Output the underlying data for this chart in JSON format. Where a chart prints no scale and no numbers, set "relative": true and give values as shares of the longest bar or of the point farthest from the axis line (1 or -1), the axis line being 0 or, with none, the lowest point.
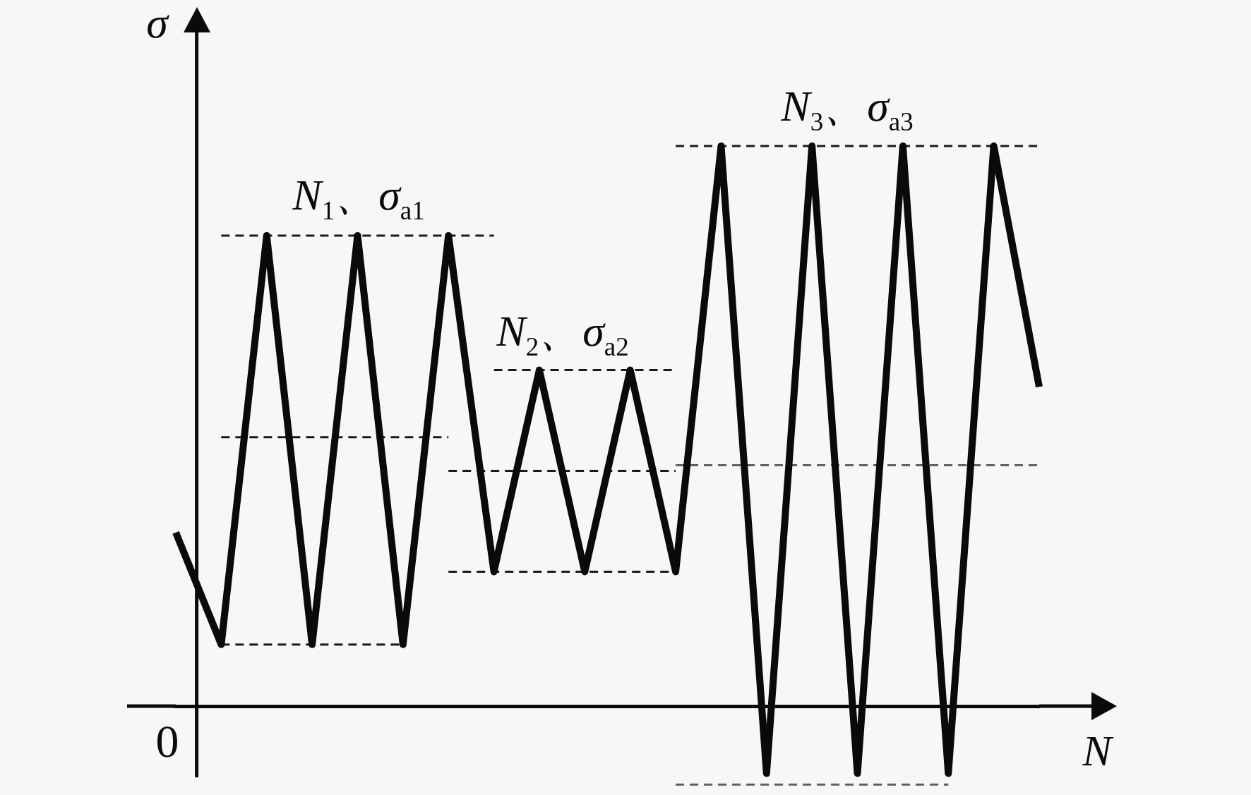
{
  "chart_data": {
    "type": "line",
    "relative": true,
    "xlabel": "N",
    "ylabel": "σ",
    "categories": [
      null,
      null,
      null,
      null,
      null,
      null,
      null,
      null,
      null,
      null,
      null,
      null,
      null,
      null,
      null,
      null,
      null,
      null,
      null,
      null
    ],
    "series": [
      {
        "color": "#0a0a0a",
        "values": [
          0.31,
          0.11,
          0.84,
          0.11,
          0.84,
          0.11,
          0.84,
          0.24,
          0.6,
          0.24,
          0.6,
          0.24,
          1,
          -0.12,
          1,
          -0.12,
          1,
          -0.12,
          1,
          0.57
        ]
      },
      {
        "color": "#1a1a1a",
        "line_style": "dashed",
        "values": [
          null,
          0.84,
          0.84,
          0.84,
          0.84,
          0.84,
          0.84,
          0.84,
          null,
          null,
          null,
          null,
          null,
          null,
          null,
          null,
          null,
          null,
          null,
          null
        ]
      },
      {
        "color": "#1a1a1a",
        "line_style": "dashed",
        "values": [
          null,
          0.48,
          0.48,
          0.48,
          0.48,
          0.48,
          0.48,
          null,
          null,
          null,
          null,
          null,
          null,
          null,
          null,
          null,
          null,
          null,
          null,
          null
        ]
      },
      {
        "color": "#1a1a1a",
        "line_style": "dashed",
        "values": [
          null,
          0.11,
          0.11,
          0.11,
          0.11,
          0.11,
          null,
          null,
          null,
          null,
          null,
          null,
          null,
          null,
          null,
          null,
          null,
          null,
          null,
          null
        ]
      },
      {
        "color": "#1a1a1a",
        "line_style": "dashed",
        "values": [
          null,
          null,
          null,
          null,
          null,
          null,
          null,
          0.6,
          0.6,
          0.6,
          0.6,
          0.6,
          null,
          null,
          null,
          null,
          null,
          null,
          null,
          null
        ]
      },
      {
        "color": "#1a1a1a",
        "line_style": "dashed",
        "values": [
          null,
          null,
          null,
          null,
          null,
          null,
          0.42,
          0.42,
          0.42,
          0.42,
          0.42,
          0.42,
          null,
          null,
          null,
          null,
          null,
          null,
          null,
          null
        ]
      },
      {
        "color": "#1a1a1a",
        "line_style": "dashed",
        "values": [
          null,
          null,
          null,
          null,
          null,
          null,
          0.24,
          0.24,
          0.24,
          0.24,
          0.24,
          0.24,
          null,
          null,
          null,
          null,
          null,
          null,
          null,
          null
        ]
      },
      {
        "color": "#1a1a1a",
        "line_style": "dashed",
        "values": [
          null,
          null,
          null,
          null,
          null,
          null,
          null,
          null,
          null,
          null,
          null,
          1,
          1,
          1,
          1,
          1,
          1,
          1,
          1,
          1
        ]
      },
      {
        "color": "#606060",
        "line_style": "dashed",
        "values": [
          null,
          null,
          null,
          null,
          null,
          null,
          null,
          null,
          null,
          null,
          null,
          0.43,
          0.43,
          0.43,
          0.43,
          0.43,
          0.43,
          0.43,
          0.43,
          0.43
        ]
      },
      {
        "color": "#606060",
        "line_style": "dashed",
        "values": [
          null,
          null,
          null,
          null,
          null,
          null,
          null,
          null,
          null,
          null,
          null,
          -0.14,
          -0.14,
          -0.14,
          -0.14,
          -0.14,
          -0.14,
          -0.14,
          null,
          null
        ]
      }
    ],
    "annotations": [
      "N$_{1}$、σ$_{a1}$",
      "N$_{2}$、σ$_{a2}$",
      "N$_{3}$、σ$_{a3}$",
      "0"
    ]
  }
}
